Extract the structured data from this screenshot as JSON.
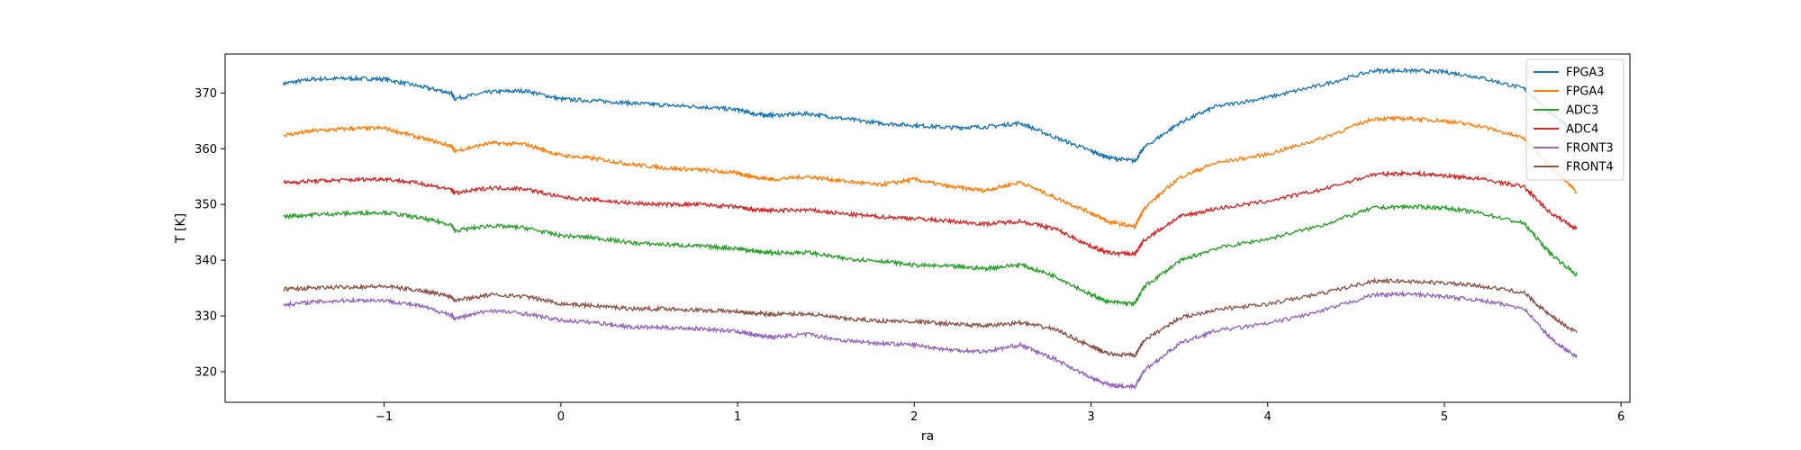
{
  "chart_data": {
    "type": "line",
    "title": "",
    "xlabel": "ra",
    "ylabel": "T [K]",
    "xlim": [
      -1.9,
      6.05
    ],
    "ylim": [
      314.5,
      377
    ],
    "xticks": [
      -1,
      0,
      1,
      2,
      3,
      4,
      5,
      6
    ],
    "yticks": [
      320,
      330,
      340,
      350,
      360,
      370
    ],
    "grid": false,
    "legend_position": "top-right",
    "x": [
      -1.57,
      -1.4,
      -1.2,
      -1.0,
      -0.8,
      -0.62,
      -0.6,
      -0.4,
      -0.2,
      0.0,
      0.2,
      0.4,
      0.6,
      0.8,
      1.0,
      1.1,
      1.2,
      1.4,
      1.6,
      1.8,
      2.0,
      2.2,
      2.4,
      2.6,
      2.8,
      3.0,
      3.1,
      3.25,
      3.3,
      3.5,
      3.7,
      4.0,
      4.3,
      4.6,
      4.8,
      5.0,
      5.2,
      5.45,
      5.6,
      5.75
    ],
    "series": [
      {
        "name": "FPGA3",
        "color": "#1f77b4",
        "values": [
          371.7,
          372.5,
          372.6,
          372.5,
          371.2,
          370.0,
          369.0,
          370.2,
          370.4,
          368.9,
          368.6,
          368.2,
          367.8,
          367.5,
          367.0,
          366.2,
          366.0,
          366.3,
          365.4,
          364.6,
          364.2,
          363.8,
          363.9,
          364.6,
          362.0,
          359.6,
          358.4,
          357.8,
          360.2,
          364.6,
          367.5,
          369.2,
          371.4,
          374.0,
          374.0,
          373.8,
          372.8,
          370.8,
          366.5,
          362.6
        ]
      },
      {
        "name": "FPGA4",
        "color": "#ff7f0e",
        "values": [
          362.4,
          363.2,
          363.6,
          363.7,
          362.0,
          360.5,
          359.6,
          361.0,
          360.8,
          358.8,
          358.2,
          357.2,
          356.5,
          356.2,
          355.6,
          354.9,
          354.5,
          355.0,
          354.2,
          353.5,
          354.5,
          353.2,
          352.5,
          354.0,
          351.2,
          348.5,
          346.9,
          346.0,
          349.3,
          354.8,
          357.4,
          359.0,
          361.8,
          365.4,
          365.4,
          365.0,
          364.1,
          361.9,
          356.8,
          352.2
        ]
      },
      {
        "name": "ADC3",
        "color": "#2ca02c",
        "values": [
          347.8,
          348.2,
          348.4,
          348.6,
          347.6,
          346.4,
          345.3,
          346.2,
          345.8,
          344.4,
          344.0,
          343.1,
          342.8,
          342.5,
          342.1,
          341.6,
          341.3,
          341.4,
          340.3,
          339.9,
          339.1,
          338.9,
          338.5,
          339.2,
          337.1,
          333.8,
          332.5,
          332.2,
          335.2,
          339.8,
          342.1,
          343.8,
          346.2,
          349.4,
          349.6,
          349.4,
          348.5,
          346.6,
          341.2,
          337.3
        ]
      },
      {
        "name": "ADC4",
        "color": "#d62728",
        "values": [
          353.9,
          354.2,
          354.4,
          354.6,
          353.8,
          352.7,
          352.0,
          353.0,
          352.8,
          351.3,
          350.8,
          350.2,
          350.0,
          350.0,
          349.5,
          349.0,
          348.9,
          349.0,
          348.3,
          347.8,
          347.5,
          347.0,
          346.5,
          347.0,
          345.6,
          342.5,
          341.3,
          341.1,
          343.6,
          347.8,
          349.2,
          350.6,
          352.6,
          355.4,
          355.6,
          355.2,
          354.6,
          353.2,
          348.5,
          345.6
        ]
      },
      {
        "name": "FRONT3",
        "color": "#9467bd",
        "values": [
          332.0,
          332.5,
          332.8,
          332.8,
          331.8,
          330.2,
          329.5,
          331.0,
          330.4,
          329.2,
          328.8,
          328.0,
          327.9,
          327.7,
          327.2,
          326.6,
          326.2,
          326.7,
          325.6,
          325.1,
          324.8,
          323.9,
          323.6,
          324.8,
          322.2,
          318.9,
          317.6,
          317.3,
          320.2,
          325.0,
          327.3,
          328.6,
          330.8,
          333.8,
          333.9,
          333.5,
          332.8,
          331.4,
          326.0,
          322.5
        ]
      },
      {
        "name": "FRONT4",
        "color": "#8c564b",
        "values": [
          334.8,
          335.0,
          335.2,
          335.3,
          334.6,
          333.5,
          332.8,
          333.8,
          333.5,
          332.2,
          331.8,
          331.3,
          331.3,
          331.0,
          330.8,
          330.4,
          330.3,
          330.4,
          329.5,
          329.1,
          329.0,
          328.6,
          328.2,
          328.8,
          327.6,
          324.5,
          323.2,
          322.9,
          325.6,
          329.6,
          331.1,
          332.1,
          334.0,
          336.3,
          336.2,
          335.9,
          335.4,
          334.2,
          330.0,
          327.0
        ]
      }
    ]
  }
}
